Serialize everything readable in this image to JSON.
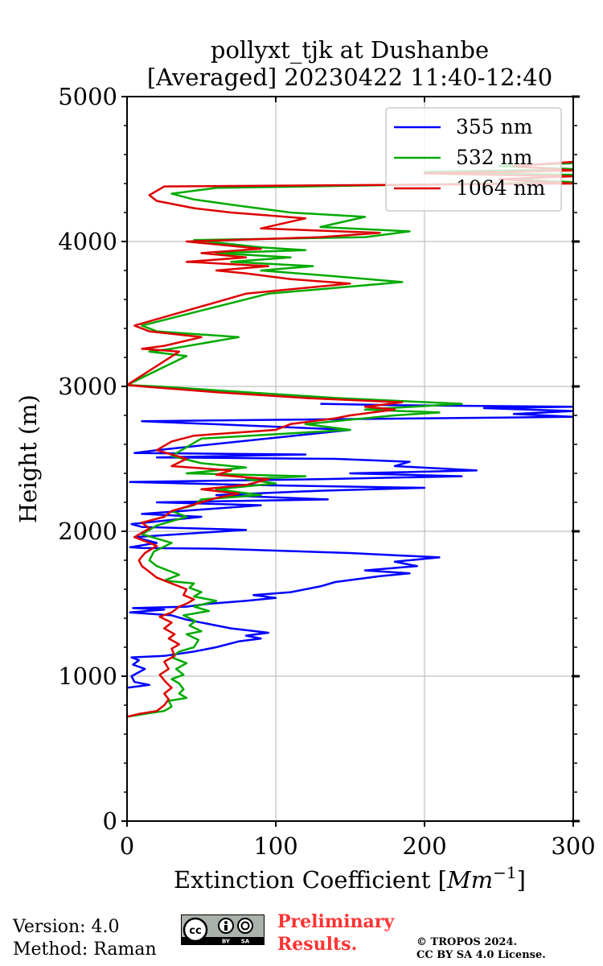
{
  "chart_data": {
    "type": "line",
    "title_lines": [
      "pollyxt_tjk at Dushanbe",
      "[Averaged] 20230422 11:40-12:40"
    ],
    "xlabel": "Extinction Coefficient [",
    "xlabel_unit": "Mm",
    "xlabel_exp": "−1",
    "xlabel_end": "]",
    "ylabel": "Height (m)",
    "xlim": [
      0,
      300
    ],
    "ylim": [
      0,
      5000
    ],
    "xticks": [
      "0",
      "100",
      "200",
      "300"
    ],
    "yticks": [
      "0",
      "1000",
      "2000",
      "3000",
      "4000",
      "5000"
    ],
    "grid": true,
    "legend_position": "top-right",
    "series": [
      {
        "name": "355 nm",
        "color": "#0000ff",
        "points": [
          [
            0,
            920
          ],
          [
            15,
            940
          ],
          [
            5,
            960
          ],
          [
            3,
            1000
          ],
          [
            12,
            1050
          ],
          [
            4,
            1080
          ],
          [
            8,
            1110
          ],
          [
            3,
            1130
          ],
          [
            25,
            1140
          ],
          [
            45,
            1170
          ],
          [
            60,
            1200
          ],
          [
            75,
            1240
          ],
          [
            90,
            1260
          ],
          [
            80,
            1280
          ],
          [
            95,
            1300
          ],
          [
            70,
            1330
          ],
          [
            60,
            1350
          ],
          [
            40,
            1390
          ],
          [
            30,
            1420
          ],
          [
            2,
            1440
          ],
          [
            25,
            1460
          ],
          [
            4,
            1470
          ],
          [
            40,
            1480
          ],
          [
            55,
            1500
          ],
          [
            80,
            1520
          ],
          [
            100,
            1540
          ],
          [
            85,
            1560
          ],
          [
            110,
            1580
          ],
          [
            130,
            1620
          ],
          [
            140,
            1650
          ],
          [
            170,
            1690
          ],
          [
            190,
            1710
          ],
          [
            160,
            1730
          ],
          [
            195,
            1760
          ],
          [
            180,
            1790
          ],
          [
            210,
            1820
          ],
          [
            150,
            1850
          ],
          [
            60,
            1880
          ],
          [
            10,
            1885
          ],
          [
            2,
            1890
          ],
          [
            20,
            1920
          ],
          [
            5,
            1960
          ],
          [
            80,
            2010
          ],
          [
            10,
            2030
          ],
          [
            3,
            2050
          ],
          [
            50,
            2100
          ],
          [
            10,
            2120
          ],
          [
            90,
            2180
          ],
          [
            20,
            2200
          ],
          [
            135,
            2220
          ],
          [
            60,
            2250
          ],
          [
            130,
            2280
          ],
          [
            200,
            2300
          ],
          [
            80,
            2320
          ],
          [
            2,
            2340
          ],
          [
            130,
            2360
          ],
          [
            225,
            2380
          ],
          [
            150,
            2400
          ],
          [
            235,
            2420
          ],
          [
            180,
            2450
          ],
          [
            190,
            2480
          ],
          [
            140,
            2500
          ],
          [
            20,
            2510
          ],
          [
            120,
            2530
          ],
          [
            5,
            2540
          ],
          [
            20,
            2560
          ],
          [
            150,
            2700
          ],
          [
            10,
            2760
          ],
          [
            300,
            2790
          ],
          [
            260,
            2810
          ],
          [
            300,
            2830
          ],
          [
            240,
            2850
          ],
          [
            300,
            2860
          ],
          [
            180,
            2870
          ],
          [
            130,
            2880
          ]
        ]
      },
      {
        "name": "532 nm",
        "color": "#00aa00",
        "points": [
          [
            0,
            720
          ],
          [
            12,
            740
          ],
          [
            25,
            760
          ],
          [
            30,
            790
          ],
          [
            28,
            830
          ],
          [
            40,
            850
          ],
          [
            35,
            880
          ],
          [
            38,
            910
          ],
          [
            35,
            950
          ],
          [
            30,
            980
          ],
          [
            38,
            1010
          ],
          [
            33,
            1050
          ],
          [
            40,
            1090
          ],
          [
            30,
            1130
          ],
          [
            35,
            1170
          ],
          [
            45,
            1200
          ],
          [
            48,
            1250
          ],
          [
            40,
            1290
          ],
          [
            50,
            1310
          ],
          [
            42,
            1350
          ],
          [
            46,
            1380
          ],
          [
            38,
            1420
          ],
          [
            55,
            1450
          ],
          [
            45,
            1480
          ],
          [
            60,
            1520
          ],
          [
            45,
            1550
          ],
          [
            50,
            1580
          ],
          [
            42,
            1610
          ],
          [
            45,
            1640
          ],
          [
            25,
            1660
          ],
          [
            35,
            1700
          ],
          [
            20,
            1760
          ],
          [
            15,
            1800
          ],
          [
            18,
            1860
          ],
          [
            30,
            1920
          ],
          [
            10,
            1980
          ],
          [
            20,
            2040
          ],
          [
            40,
            2100
          ],
          [
            30,
            2140
          ],
          [
            45,
            2180
          ],
          [
            50,
            2220
          ],
          [
            90,
            2250
          ],
          [
            60,
            2290
          ],
          [
            100,
            2330
          ],
          [
            80,
            2360
          ],
          [
            120,
            2380
          ],
          [
            40,
            2400
          ],
          [
            80,
            2440
          ],
          [
            50,
            2470
          ],
          [
            30,
            2520
          ],
          [
            40,
            2580
          ],
          [
            50,
            2640
          ],
          [
            150,
            2700
          ],
          [
            120,
            2740
          ],
          [
            180,
            2800
          ],
          [
            210,
            2820
          ],
          [
            160,
            2840
          ],
          [
            225,
            2880
          ],
          [
            140,
            2920
          ],
          [
            80,
            2960
          ],
          [
            20,
            3000
          ],
          [
            0,
            3010
          ],
          [
            40,
            3210
          ],
          [
            15,
            3240
          ],
          [
            30,
            3260
          ],
          [
            75,
            3340
          ],
          [
            20,
            3380
          ],
          [
            10,
            3420
          ],
          [
            95,
            3640
          ],
          [
            185,
            3720
          ],
          [
            140,
            3760
          ],
          [
            90,
            3800
          ],
          [
            125,
            3830
          ],
          [
            70,
            3860
          ],
          [
            110,
            3890
          ],
          [
            60,
            3920
          ],
          [
            120,
            3940
          ],
          [
            90,
            3960
          ],
          [
            45,
            4010
          ],
          [
            160,
            4030
          ],
          [
            190,
            4070
          ],
          [
            130,
            4100
          ],
          [
            160,
            4170
          ],
          [
            110,
            4200
          ],
          [
            80,
            4240
          ],
          [
            45,
            4290
          ],
          [
            30,
            4330
          ],
          [
            60,
            4370
          ],
          [
            300,
            4410
          ],
          [
            260,
            4430
          ],
          [
            300,
            4460
          ],
          [
            200,
            4480
          ],
          [
            300,
            4500
          ],
          [
            250,
            4520
          ],
          [
            300,
            4540
          ]
        ]
      },
      {
        "name": "1064 nm",
        "color": "#dd0000",
        "points": [
          [
            0,
            720
          ],
          [
            8,
            740
          ],
          [
            20,
            760
          ],
          [
            25,
            800
          ],
          [
            28,
            840
          ],
          [
            25,
            880
          ],
          [
            30,
            920
          ],
          [
            26,
            960
          ],
          [
            22,
            1010
          ],
          [
            28,
            1050
          ],
          [
            25,
            1100
          ],
          [
            32,
            1140
          ],
          [
            30,
            1190
          ],
          [
            35,
            1220
          ],
          [
            28,
            1260
          ],
          [
            32,
            1290
          ],
          [
            25,
            1330
          ],
          [
            30,
            1370
          ],
          [
            22,
            1410
          ],
          [
            30,
            1440
          ],
          [
            35,
            1480
          ],
          [
            40,
            1500
          ],
          [
            45,
            1530
          ],
          [
            38,
            1560
          ],
          [
            40,
            1600
          ],
          [
            30,
            1640
          ],
          [
            20,
            1680
          ],
          [
            15,
            1720
          ],
          [
            10,
            1760
          ],
          [
            8,
            1800
          ],
          [
            12,
            1850
          ],
          [
            20,
            1900
          ],
          [
            5,
            1960
          ],
          [
            15,
            2020
          ],
          [
            10,
            2060
          ],
          [
            25,
            2100
          ],
          [
            30,
            2140
          ],
          [
            40,
            2170
          ],
          [
            50,
            2200
          ],
          [
            60,
            2230
          ],
          [
            75,
            2260
          ],
          [
            50,
            2290
          ],
          [
            80,
            2320
          ],
          [
            95,
            2360
          ],
          [
            60,
            2390
          ],
          [
            70,
            2420
          ],
          [
            30,
            2450
          ],
          [
            40,
            2500
          ],
          [
            20,
            2560
          ],
          [
            30,
            2620
          ],
          [
            45,
            2660
          ],
          [
            100,
            2700
          ],
          [
            110,
            2740
          ],
          [
            140,
            2780
          ],
          [
            150,
            2800
          ],
          [
            180,
            2840
          ],
          [
            160,
            2860
          ],
          [
            185,
            2890
          ],
          [
            120,
            2920
          ],
          [
            60,
            2960
          ],
          [
            10,
            3000
          ],
          [
            0,
            3010
          ],
          [
            35,
            3240
          ],
          [
            10,
            3260
          ],
          [
            25,
            3280
          ],
          [
            50,
            3340
          ],
          [
            15,
            3380
          ],
          [
            5,
            3420
          ],
          [
            80,
            3640
          ],
          [
            150,
            3710
          ],
          [
            110,
            3740
          ],
          [
            80,
            3780
          ],
          [
            60,
            3800
          ],
          [
            95,
            3830
          ],
          [
            40,
            3860
          ],
          [
            80,
            3890
          ],
          [
            50,
            3920
          ],
          [
            90,
            3950
          ],
          [
            40,
            4000
          ],
          [
            130,
            4030
          ],
          [
            170,
            4060
          ],
          [
            90,
            4090
          ],
          [
            120,
            4160
          ],
          [
            70,
            4200
          ],
          [
            45,
            4230
          ],
          [
            20,
            4280
          ],
          [
            15,
            4320
          ],
          [
            25,
            4380
          ],
          [
            300,
            4400
          ],
          [
            250,
            4430
          ],
          [
            300,
            4450
          ],
          [
            200,
            4470
          ],
          [
            300,
            4490
          ],
          [
            260,
            4520
          ],
          [
            300,
            4550
          ]
        ]
      }
    ]
  },
  "footer": {
    "version": "Version: 4.0",
    "method": "Method: Raman",
    "preliminary_line1": "Preliminary",
    "preliminary_line2": "Results.",
    "copyright_line1": "© TROPOS 2024.",
    "copyright_line2": "CC BY SA 4.0 License.",
    "badge_cc": "cc",
    "badge_by": "BY",
    "badge_sa": "SA"
  }
}
